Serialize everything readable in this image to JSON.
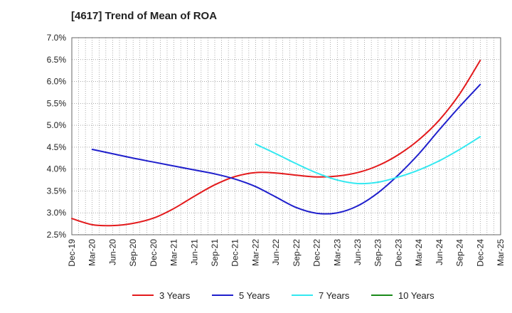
{
  "chart_data": {
    "type": "line",
    "title": "[4617]  Trend of Mean of ROA",
    "y_ticks": [
      "7.0%",
      "6.5%",
      "6.0%",
      "5.5%",
      "5.0%",
      "4.5%",
      "4.0%",
      "3.5%",
      "3.0%",
      "2.5%"
    ],
    "ylim": [
      2.5,
      7.0
    ],
    "x_labels": [
      "Dec-19",
      "Mar-20",
      "Jun-20",
      "Sep-20",
      "Dec-20",
      "Mar-21",
      "Jun-21",
      "Sep-21",
      "Dec-21",
      "Mar-22",
      "Jun-22",
      "Sep-22",
      "Dec-22",
      "Mar-23",
      "Jun-23",
      "Sep-23",
      "Dec-23",
      "Mar-24",
      "Jun-24",
      "Sep-24",
      "Dec-24",
      "Mar-25"
    ],
    "grid": true,
    "legend_position": "bottom",
    "series": [
      {
        "name": "3 Years",
        "color": "#e31a1c",
        "x_index": [
          0,
          1,
          2,
          3,
          4,
          5,
          6,
          7,
          8,
          9,
          10,
          11,
          12,
          13,
          14,
          15,
          16,
          17,
          18,
          19,
          20
        ],
        "values": [
          2.87,
          2.73,
          2.71,
          2.76,
          2.88,
          3.1,
          3.38,
          3.64,
          3.83,
          3.92,
          3.91,
          3.86,
          3.82,
          3.84,
          3.92,
          4.08,
          4.33,
          4.67,
          5.12,
          5.72,
          6.48
        ]
      },
      {
        "name": "5 Years",
        "color": "#1f1fcc",
        "x_index": [
          1,
          2,
          3,
          4,
          5,
          6,
          7,
          8,
          9,
          10,
          11,
          12,
          13,
          14,
          15,
          16,
          17,
          18,
          19,
          20
        ],
        "values": [
          4.45,
          4.35,
          4.25,
          4.16,
          4.07,
          3.98,
          3.89,
          3.77,
          3.6,
          3.36,
          3.12,
          2.99,
          3.0,
          3.16,
          3.46,
          3.87,
          4.35,
          4.9,
          5.43,
          5.93
        ]
      },
      {
        "name": "7 Years",
        "color": "#33e8f0",
        "x_index": [
          9,
          10,
          11,
          12,
          13,
          14,
          15,
          16,
          17,
          18,
          19,
          20
        ],
        "values": [
          4.57,
          4.35,
          4.12,
          3.91,
          3.75,
          3.67,
          3.7,
          3.82,
          3.98,
          4.19,
          4.45,
          4.74
        ]
      },
      {
        "name": "10 Years",
        "color": "#1a8a1a",
        "x_index": [],
        "values": []
      }
    ]
  }
}
